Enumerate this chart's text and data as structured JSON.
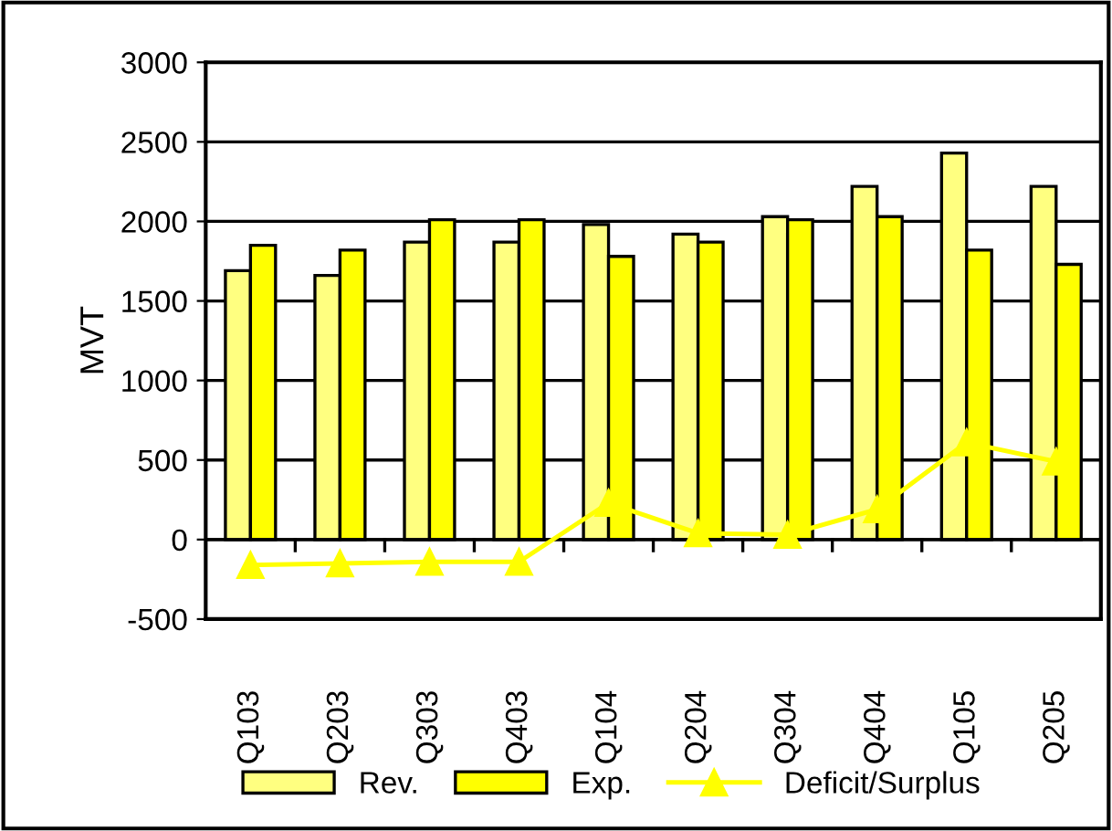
{
  "chart_data": {
    "type": "bar",
    "ylabel": "MVT",
    "categories": [
      "Q103",
      "Q203",
      "Q303",
      "Q403",
      "Q104",
      "Q204",
      "Q304",
      "Q404",
      "Q105",
      "Q205"
    ],
    "series": [
      {
        "name": "Rev.",
        "color": "#ffff80",
        "values": [
          1690,
          1660,
          1870,
          1870,
          1980,
          1920,
          2030,
          2220,
          2430,
          2220
        ]
      },
      {
        "name": "Exp.",
        "color": "#ffff00",
        "values": [
          1850,
          1820,
          2010,
          2010,
          1780,
          1870,
          2010,
          2030,
          1820,
          1730
        ]
      },
      {
        "name": "Deficit/Surplus",
        "type": "line",
        "color": "#ffff00",
        "marker": "triangle",
        "values": [
          -160,
          -150,
          -140,
          -140,
          230,
          40,
          30,
          190,
          610,
          490
        ]
      }
    ],
    "ylim": [
      -500,
      3000
    ],
    "yticks": [
      -500,
      0,
      500,
      1000,
      1500,
      2000,
      2500,
      3000
    ],
    "grid": "y",
    "legend": "bottom"
  }
}
